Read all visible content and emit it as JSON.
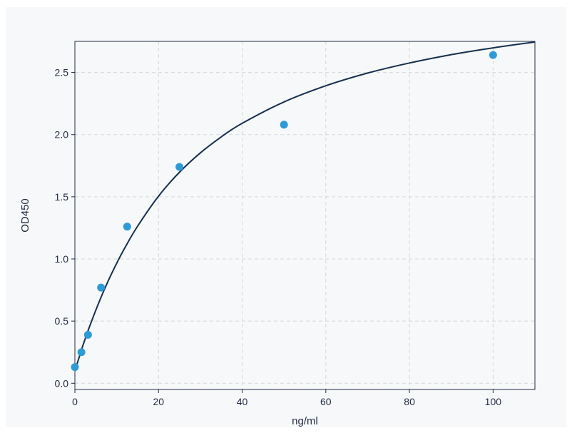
{
  "chart_data": {
    "type": "scatter",
    "title": "",
    "xlabel": "ng/ml",
    "ylabel": "OD450",
    "xlim": [
      0,
      110
    ],
    "ylim": [
      -0.05,
      2.75
    ],
    "xticks": [
      0,
      20,
      40,
      60,
      80,
      100
    ],
    "yticks": [
      0.0,
      0.5,
      1.0,
      1.5,
      2.0,
      2.5
    ],
    "xtick_labels": [
      "0",
      "20",
      "40",
      "60",
      "80",
      "100"
    ],
    "ytick_labels": [
      "0.0",
      "0.5",
      "1.0",
      "1.5",
      "2.0",
      "2.5"
    ],
    "grid": true,
    "series": [
      {
        "points": [
          {
            "x": 0,
            "y": 0.13
          },
          {
            "x": 1.56,
            "y": 0.25
          },
          {
            "x": 3.13,
            "y": 0.39
          },
          {
            "x": 6.25,
            "y": 0.77
          },
          {
            "x": 12.5,
            "y": 1.26
          },
          {
            "x": 25,
            "y": 1.74
          },
          {
            "x": 50,
            "y": 2.08
          },
          {
            "x": 100,
            "y": 2.64
          }
        ],
        "color": "#2e9bd6"
      }
    ],
    "fit_curve": {
      "x": [
        0,
        2,
        4,
        6,
        8,
        10,
        12,
        15,
        20,
        25,
        30,
        35,
        40,
        50,
        60,
        70,
        80,
        90,
        100,
        110
      ],
      "y": [
        0.1,
        0.312,
        0.501,
        0.672,
        0.826,
        0.965,
        1.093,
        1.264,
        1.505,
        1.697,
        1.853,
        1.982,
        2.091,
        2.263,
        2.393,
        2.495,
        2.576,
        2.643,
        2.698,
        2.745
      ],
      "color": "#15304f"
    }
  }
}
